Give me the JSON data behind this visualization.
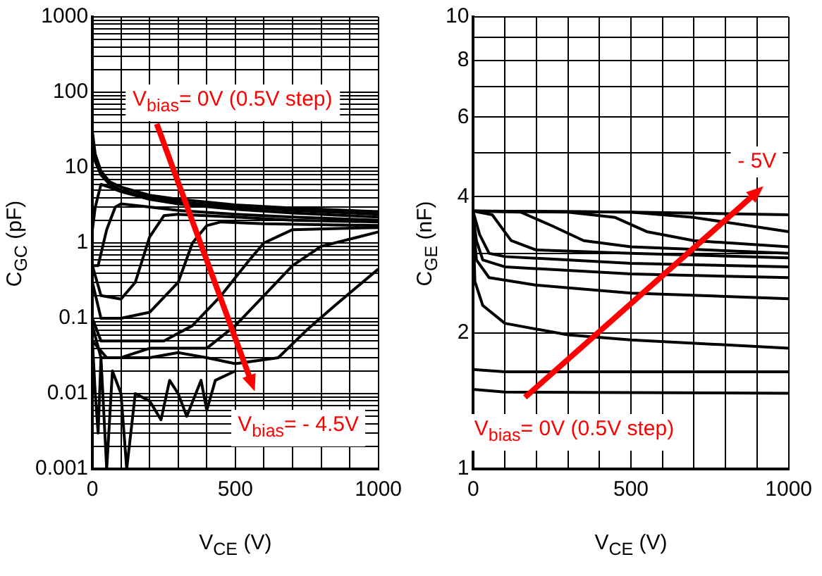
{
  "chart_data": [
    {
      "type": "line",
      "log": "y",
      "grid": true,
      "xlabel": "V$_{CE}$ (V)",
      "ylabel": "C$_{GC}$ (pF)",
      "xlim": [
        0,
        1000
      ],
      "ylim": [
        0.001,
        1000
      ],
      "xticks": [
        0,
        {
          "value": 100,
          "label": null
        },
        {
          "value": 200,
          "label": null
        },
        {
          "value": 300,
          "label": null
        },
        {
          "value": 400,
          "label": null
        },
        500,
        {
          "value": 600,
          "label": null
        },
        {
          "value": 700,
          "label": null
        },
        {
          "value": 800,
          "label": null
        },
        {
          "value": 900,
          "label": null
        },
        1000
      ],
      "yticks": [
        0.001,
        {
          "value": 0.002,
          "label": null
        },
        {
          "value": 0.003,
          "label": null
        },
        {
          "value": 0.004,
          "label": null
        },
        {
          "value": 0.005,
          "label": null
        },
        {
          "value": 0.006,
          "label": null
        },
        {
          "value": 0.007,
          "label": null
        },
        {
          "value": 0.008,
          "label": null
        },
        {
          "value": 0.009,
          "label": null
        },
        0.01,
        {
          "value": 0.02,
          "label": null
        },
        {
          "value": 0.03,
          "label": null
        },
        {
          "value": 0.04,
          "label": null
        },
        {
          "value": 0.05,
          "label": null
        },
        {
          "value": 0.06,
          "label": null
        },
        {
          "value": 0.07,
          "label": null
        },
        {
          "value": 0.08,
          "label": null
        },
        {
          "value": 0.09,
          "label": null
        },
        0.1,
        {
          "value": 0.2,
          "label": null
        },
        {
          "value": 0.3,
          "label": null
        },
        {
          "value": 0.4,
          "label": null
        },
        {
          "value": 0.5,
          "label": null
        },
        {
          "value": 0.6,
          "label": null
        },
        {
          "value": 0.7,
          "label": null
        },
        {
          "value": 0.8,
          "label": null
        },
        {
          "value": 0.9,
          "label": null
        },
        1,
        {
          "value": 2,
          "label": null
        },
        {
          "value": 3,
          "label": null
        },
        {
          "value": 4,
          "label": null
        },
        {
          "value": 5,
          "label": null
        },
        {
          "value": 6,
          "label": null
        },
        {
          "value": 7,
          "label": null
        },
        {
          "value": 8,
          "label": null
        },
        {
          "value": 9,
          "label": null
        },
        10,
        {
          "value": 20,
          "label": null
        },
        {
          "value": 30,
          "label": null
        },
        {
          "value": 40,
          "label": null
        },
        {
          "value": 50,
          "label": null
        },
        {
          "value": 60,
          "label": null
        },
        {
          "value": 70,
          "label": null
        },
        {
          "value": 80,
          "label": null
        },
        {
          "value": 90,
          "label": null
        },
        100,
        {
          "value": 200,
          "label": null
        },
        {
          "value": 300,
          "label": null
        },
        {
          "value": 400,
          "label": null
        },
        {
          "value": 500,
          "label": null
        },
        {
          "value": 600,
          "label": null
        },
        {
          "value": 700,
          "label": null
        },
        {
          "value": 800,
          "label": null
        },
        {
          "value": 900,
          "label": null
        },
        1000
      ],
      "annotations": [
        "V$_{bias}$= 0V (0.5V step)",
        "V$_{bias}$= - 4.5V"
      ],
      "series": [
        {
          "color": "#000000",
          "x": [
            0,
            10,
            30,
            60,
            100,
            200,
            300,
            500,
            700,
            1000
          ],
          "values": [
            30,
            15,
            9,
            6.5,
            5.5,
            4.3,
            3.8,
            3.2,
            2.9,
            2.6
          ]
        },
        {
          "color": "#000000",
          "x": [
            0,
            10,
            30,
            60,
            100,
            200,
            300,
            500,
            700,
            1000
          ],
          "values": [
            25,
            12,
            8,
            6,
            5,
            4,
            3.5,
            3,
            2.7,
            2.4
          ]
        },
        {
          "color": "#000000",
          "x": [
            0,
            10,
            30,
            60,
            100,
            200,
            300,
            500,
            700,
            1000
          ],
          "values": [
            1.5,
            3,
            6,
            5.5,
            4.8,
            3.8,
            3.3,
            2.8,
            2.5,
            2.2
          ]
        },
        {
          "color": "#000000",
          "x": [
            0,
            20,
            50,
            80,
            100,
            200,
            300,
            500,
            700,
            1000
          ],
          "values": [
            0.5,
            0.5,
            1.5,
            3,
            3.3,
            3,
            2.7,
            2.4,
            2.2,
            2
          ]
        },
        {
          "color": "#000000",
          "x": [
            0,
            30,
            100,
            150,
            200,
            250,
            300,
            500,
            700,
            1000
          ],
          "values": [
            0.5,
            0.2,
            0.18,
            0.3,
            1.2,
            2.3,
            2.4,
            2.2,
            2,
            1.9
          ]
        },
        {
          "color": "#000000",
          "x": [
            0,
            30,
            100,
            200,
            300,
            350,
            400,
            450,
            600,
            1000
          ],
          "values": [
            0.3,
            0.1,
            0.1,
            0.12,
            0.3,
            1,
            1.7,
            1.9,
            1.8,
            1.7
          ]
        },
        {
          "color": "#000000",
          "x": [
            0,
            30,
            100,
            250,
            350,
            450,
            550,
            600,
            700,
            1000
          ],
          "values": [
            0.1,
            0.05,
            0.05,
            0.05,
            0.08,
            0.2,
            0.6,
            1,
            1.5,
            1.6
          ]
        },
        {
          "color": "#000000",
          "x": [
            0,
            30,
            100,
            200,
            300,
            400,
            500,
            600,
            700,
            800,
            1000
          ],
          "values": [
            0.08,
            0.03,
            0.03,
            0.04,
            0.04,
            0.04,
            0.08,
            0.2,
            0.5,
            0.9,
            1.4
          ]
        },
        {
          "color": "#000000",
          "x": [
            0,
            50,
            100,
            200,
            300,
            400,
            500,
            650,
            750,
            850,
            1000
          ],
          "values": [
            0.05,
            0.03,
            0.03,
            0.03,
            0.035,
            0.03,
            0.025,
            0.03,
            0.07,
            0.15,
            0.45
          ]
        },
        {
          "color": "#000000",
          "x": [
            0,
            10,
            20,
            30,
            50,
            70,
            100,
            120,
            150,
            200,
            240,
            270,
            300,
            330,
            380,
            400,
            430,
            500
          ],
          "values": [
            0.05,
            0.01,
            0.003,
            0.03,
            0.001,
            0.02,
            0.01,
            0.001,
            0.01,
            0.008,
            0.0045,
            0.015,
            0.01,
            0.005,
            0.015,
            0.006,
            0.015,
            0.02
          ]
        }
      ]
    },
    {
      "type": "line",
      "log": "y",
      "grid": true,
      "xlabel": "V$_{CE}$ (V)",
      "ylabel": "C$_{GE}$ (nF)",
      "xlim": [
        0,
        1000
      ],
      "ylim": [
        1,
        10
      ],
      "xticks": [
        0,
        {
          "value": 100,
          "label": null
        },
        {
          "value": 200,
          "label": null
        },
        {
          "value": 300,
          "label": null
        },
        {
          "value": 400,
          "label": null
        },
        500,
        {
          "value": 600,
          "label": null
        },
        {
          "value": 700,
          "label": null
        },
        {
          "value": 800,
          "label": null
        },
        {
          "value": 900,
          "label": null
        },
        1000
      ],
      "yticks": [
        1,
        2,
        {
          "value": 3,
          "label": null
        },
        4,
        {
          "value": 5,
          "label": null
        },
        6,
        {
          "value": 7,
          "label": null
        },
        8,
        {
          "value": 9,
          "label": null
        },
        10
      ],
      "annotations": [
        "- 5V",
        "V$_{bias}$= 0V (0.5V step)"
      ],
      "series": [
        {
          "color": "#000000",
          "x": [
            0,
            500,
            1000
          ],
          "values": [
            3.72,
            3.7,
            3.65
          ]
        },
        {
          "color": "#000000",
          "x": [
            0,
            500,
            700,
            1000
          ],
          "values": [
            3.72,
            3.7,
            3.6,
            3.35
          ]
        },
        {
          "color": "#000000",
          "x": [
            0,
            300,
            450,
            550,
            700,
            1000
          ],
          "values": [
            3.72,
            3.7,
            3.6,
            3.35,
            3.2,
            3.1
          ]
        },
        {
          "color": "#000000",
          "x": [
            0,
            150,
            250,
            350,
            500,
            1000
          ],
          "values": [
            3.72,
            3.7,
            3.45,
            3.2,
            3.1,
            3
          ]
        },
        {
          "color": "#000000",
          "x": [
            0,
            60,
            120,
            200,
            500,
            1000
          ],
          "values": [
            3.72,
            3.65,
            3.2,
            3.05,
            3,
            2.93
          ]
        },
        {
          "color": "#000000",
          "x": [
            0,
            20,
            50,
            100,
            500,
            1000
          ],
          "values": [
            3.7,
            3.3,
            3,
            2.95,
            2.85,
            2.8
          ]
        },
        {
          "color": "#000000",
          "x": [
            0,
            10,
            30,
            100,
            500,
            1000
          ],
          "values": [
            3.6,
            3.2,
            2.9,
            2.8,
            2.7,
            2.65
          ]
        },
        {
          "color": "#000000",
          "x": [
            0,
            10,
            50,
            200,
            500,
            1000
          ],
          "values": [
            3.5,
            2.9,
            2.65,
            2.55,
            2.45,
            2.38
          ]
        },
        {
          "color": "#000000",
          "x": [
            0,
            5,
            30,
            100,
            300,
            500,
            1000
          ],
          "values": [
            3.4,
            2.6,
            2.3,
            2.1,
            1.98,
            1.93,
            1.85
          ]
        },
        {
          "color": "#000000",
          "x": [
            0,
            100,
            1000
          ],
          "values": [
            1.66,
            1.64,
            1.64
          ]
        },
        {
          "color": "#000000",
          "x": [
            0,
            100,
            1000
          ],
          "values": [
            1.5,
            1.48,
            1.47
          ]
        }
      ]
    }
  ]
}
